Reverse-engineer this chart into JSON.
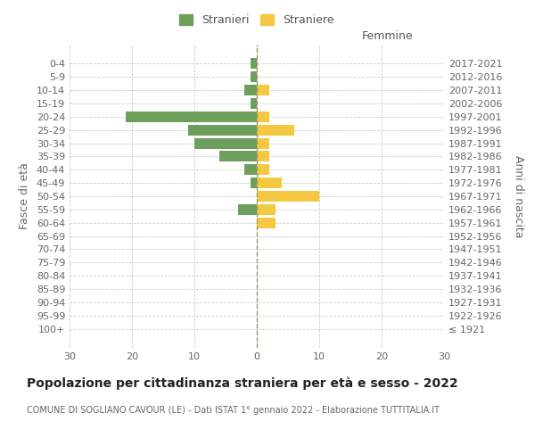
{
  "age_groups": [
    "100+",
    "95-99",
    "90-94",
    "85-89",
    "80-84",
    "75-79",
    "70-74",
    "65-69",
    "60-64",
    "55-59",
    "50-54",
    "45-49",
    "40-44",
    "35-39",
    "30-34",
    "25-29",
    "20-24",
    "15-19",
    "10-14",
    "5-9",
    "0-4"
  ],
  "birth_years": [
    "≤ 1921",
    "1922-1926",
    "1927-1931",
    "1932-1936",
    "1937-1941",
    "1942-1946",
    "1947-1951",
    "1952-1956",
    "1957-1961",
    "1962-1966",
    "1967-1971",
    "1972-1976",
    "1977-1981",
    "1982-1986",
    "1987-1991",
    "1992-1996",
    "1997-2001",
    "2002-2006",
    "2007-2011",
    "2012-2016",
    "2017-2021"
  ],
  "males": [
    0,
    0,
    0,
    0,
    0,
    0,
    0,
    0,
    0,
    3,
    0,
    1,
    2,
    6,
    10,
    11,
    21,
    1,
    2,
    1,
    1
  ],
  "females": [
    0,
    0,
    0,
    0,
    0,
    0,
    0,
    0,
    3,
    3,
    10,
    4,
    2,
    2,
    2,
    6,
    2,
    0,
    2,
    0,
    0
  ],
  "male_color": "#6d9e5b",
  "female_color": "#f5c842",
  "title": "Popolazione per cittadinanza straniera per età e sesso - 2022",
  "subtitle": "COMUNE DI SOGLIANO CAVOUR (LE) - Dati ISTAT 1° gennaio 2022 - Elaborazione TUTTITALIA.IT",
  "xlabel_right": "Femmine",
  "ylabel_left": "Fasce di età",
  "ylabel_right": "Anni di nascita",
  "legend_male": "Stranieri",
  "legend_female": "Straniere",
  "xlim": 30,
  "background_color": "#ffffff",
  "grid_color": "#cccccc",
  "bar_height": 0.8,
  "title_fontsize": 10,
  "subtitle_fontsize": 7,
  "tick_fontsize": 8,
  "label_fontsize": 9
}
